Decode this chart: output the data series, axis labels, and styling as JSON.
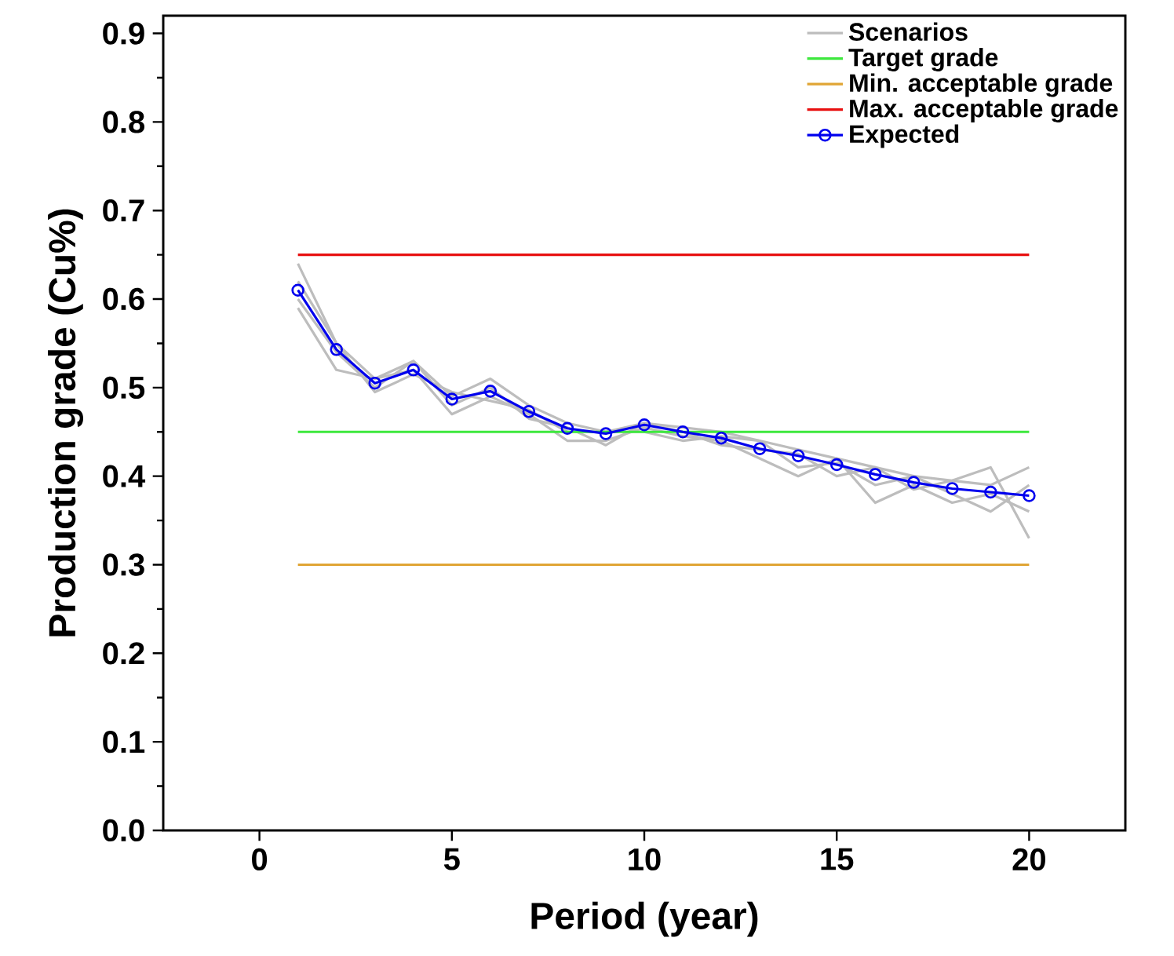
{
  "chart_data": {
    "type": "line",
    "xlabel": "Period (year)",
    "ylabel": "Production grade (Cu%)",
    "x": [
      1,
      2,
      3,
      4,
      5,
      6,
      7,
      8,
      9,
      10,
      11,
      12,
      13,
      14,
      15,
      16,
      17,
      18,
      19,
      20
    ],
    "xlim": [
      -2.5,
      22.5
    ],
    "xticks": [
      0,
      5,
      10,
      15,
      20
    ],
    "ylim": [
      0,
      0.92
    ],
    "yticks": [
      {
        "value": 0,
        "label": "0.0"
      },
      {
        "value": 0.1,
        "label": "0.1"
      },
      {
        "value": 0.2,
        "label": "0.2"
      },
      {
        "value": 0.3,
        "label": "0.3"
      },
      {
        "value": 0.4,
        "label": "0.4"
      },
      {
        "value": 0.5,
        "label": "0.5"
      },
      {
        "value": 0.6,
        "label": "0.6"
      },
      {
        "value": 0.7,
        "label": "0.7"
      },
      {
        "value": 0.8,
        "label": "0.8"
      },
      {
        "value": 0.9,
        "label": "0.9"
      }
    ],
    "legend": "top right",
    "series": [
      {
        "name": "Scenarios",
        "color": "#bdbdbd",
        "values": [
          0.64,
          0.55,
          0.51,
          0.53,
          0.49,
          0.51,
          0.48,
          0.46,
          0.45,
          0.46,
          0.455,
          0.45,
          0.44,
          0.43,
          0.42,
          0.41,
          0.4,
          0.395,
          0.39,
          0.41
        ]
      },
      {
        "color": "#bdbdbd",
        "values": [
          0.59,
          0.52,
          0.51,
          0.52,
          0.47,
          0.49,
          0.47,
          0.44,
          0.44,
          0.455,
          0.445,
          0.44,
          0.42,
          0.4,
          0.42,
          0.37,
          0.39,
          0.37,
          0.38,
          0.36
        ]
      },
      {
        "color": "#bdbdbd",
        "values": [
          0.6,
          0.54,
          0.5,
          0.53,
          0.48,
          0.5,
          0.465,
          0.455,
          0.435,
          0.46,
          0.45,
          0.435,
          0.43,
          0.425,
          0.4,
          0.41,
          0.385,
          0.395,
          0.41,
          0.33
        ]
      },
      {
        "color": "#bdbdbd",
        "values": [
          0.62,
          0.55,
          0.495,
          0.515,
          0.495,
          0.485,
          0.475,
          0.45,
          0.45,
          0.45,
          0.44,
          0.445,
          0.44,
          0.41,
          0.415,
          0.39,
          0.4,
          0.38,
          0.36,
          0.39
        ]
      },
      {
        "name": "Target grade",
        "color": "#3ee83e",
        "values": [
          0.45,
          0.45,
          0.45,
          0.45,
          0.45,
          0.45,
          0.45,
          0.45,
          0.45,
          0.45,
          0.45,
          0.45,
          0.45,
          0.45,
          0.45,
          0.45,
          0.45,
          0.45,
          0.45,
          0.45
        ]
      },
      {
        "name": "Min. acceptable grade",
        "color": "#e0a535",
        "values": [
          0.3,
          0.3,
          0.3,
          0.3,
          0.3,
          0.3,
          0.3,
          0.3,
          0.3,
          0.3,
          0.3,
          0.3,
          0.3,
          0.3,
          0.3,
          0.3,
          0.3,
          0.3,
          0.3,
          0.3
        ]
      },
      {
        "name": "Max. acceptable grade",
        "color": "#e81010",
        "values": [
          0.65,
          0.65,
          0.65,
          0.65,
          0.65,
          0.65,
          0.65,
          0.65,
          0.65,
          0.65,
          0.65,
          0.65,
          0.65,
          0.65,
          0.65,
          0.65,
          0.65,
          0.65,
          0.65,
          0.65
        ]
      },
      {
        "name": "Expected",
        "color": "#0000ee",
        "marker": "circle",
        "values": [
          0.61,
          0.543,
          0.505,
          0.52,
          0.487,
          0.496,
          0.473,
          0.454,
          0.448,
          0.458,
          0.45,
          0.443,
          0.431,
          0.423,
          0.413,
          0.402,
          0.393,
          0.386,
          0.382,
          0.378
        ]
      }
    ]
  }
}
